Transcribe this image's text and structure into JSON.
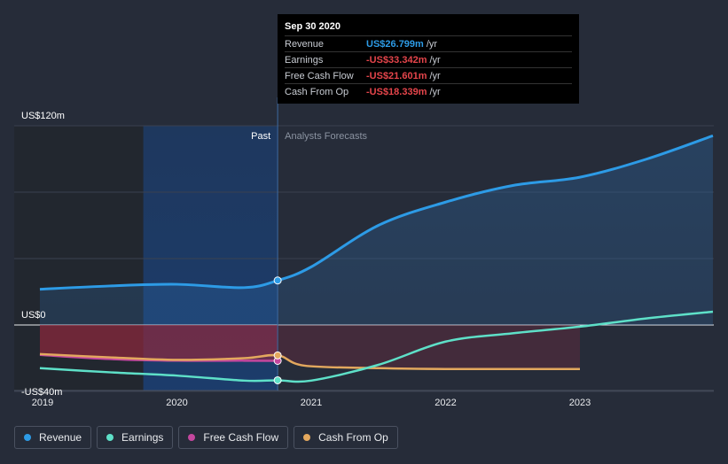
{
  "chart_data": {
    "type": "line",
    "x_ticks": [
      "2019",
      "2020",
      "2021",
      "2022",
      "2023"
    ],
    "y_ticks": [
      {
        "label": "US$120m",
        "value": 120
      },
      {
        "label": "US$0",
        "value": 0
      },
      {
        "label": "-US$40m",
        "value": -40
      }
    ],
    "ylim": [
      -40,
      120
    ],
    "region_labels": {
      "past": "Past",
      "forecast": "Analysts Forecasts"
    },
    "series": [
      {
        "name": "Revenue",
        "color": "#2d9be6",
        "points": [
          [
            2018.98,
            21.5
          ],
          [
            2019.5,
            23.5
          ],
          [
            2020.0,
            24.5
          ],
          [
            2020.5,
            22.5
          ],
          [
            2020.75,
            26.8
          ],
          [
            2021.0,
            35
          ],
          [
            2021.5,
            60
          ],
          [
            2022.0,
            74
          ],
          [
            2022.5,
            84
          ],
          [
            2023.0,
            89
          ],
          [
            2023.5,
            100
          ],
          [
            2023.99,
            114
          ]
        ]
      },
      {
        "name": "Earnings",
        "color": "#5ee0c8",
        "points": [
          [
            2018.98,
            -26
          ],
          [
            2019.5,
            -28.5
          ],
          [
            2020.0,
            -30.5
          ],
          [
            2020.5,
            -33.5
          ],
          [
            2020.75,
            -33.3
          ],
          [
            2021.0,
            -33.5
          ],
          [
            2021.5,
            -24
          ],
          [
            2022.0,
            -10
          ],
          [
            2022.5,
            -5
          ],
          [
            2023.0,
            -1
          ],
          [
            2023.5,
            4
          ],
          [
            2023.99,
            8
          ]
        ]
      },
      {
        "name": "Free Cash Flow",
        "color": "#c4479e",
        "points": [
          [
            2018.98,
            -18
          ],
          [
            2019.5,
            -20.5
          ],
          [
            2020.0,
            -21.5
          ],
          [
            2020.5,
            -21.5
          ],
          [
            2020.75,
            -21.6
          ]
        ]
      },
      {
        "name": "Cash From Op",
        "color": "#e3a85e",
        "points": [
          [
            2018.98,
            -17.5
          ],
          [
            2019.5,
            -19.5
          ],
          [
            2020.0,
            -21
          ],
          [
            2020.5,
            -20
          ],
          [
            2020.75,
            -18.3
          ],
          [
            2020.95,
            -24.5
          ],
          [
            2021.5,
            -26
          ],
          [
            2022.0,
            -26.5
          ],
          [
            2023.0,
            -26.5
          ]
        ]
      }
    ],
    "tooltip": {
      "date": "Sep 30 2020",
      "rows": [
        {
          "name": "Revenue",
          "value": "US$26.799m",
          "unit": "/yr",
          "color": "#2d9be6"
        },
        {
          "name": "Earnings",
          "value": "-US$33.342m",
          "unit": "/yr",
          "color": "#e5454b"
        },
        {
          "name": "Free Cash Flow",
          "value": "-US$21.601m",
          "unit": "/yr",
          "color": "#e5454b"
        },
        {
          "name": "Cash From Op",
          "value": "-US$18.339m",
          "unit": "/yr",
          "color": "#e5454b"
        }
      ]
    },
    "grid": true
  }
}
